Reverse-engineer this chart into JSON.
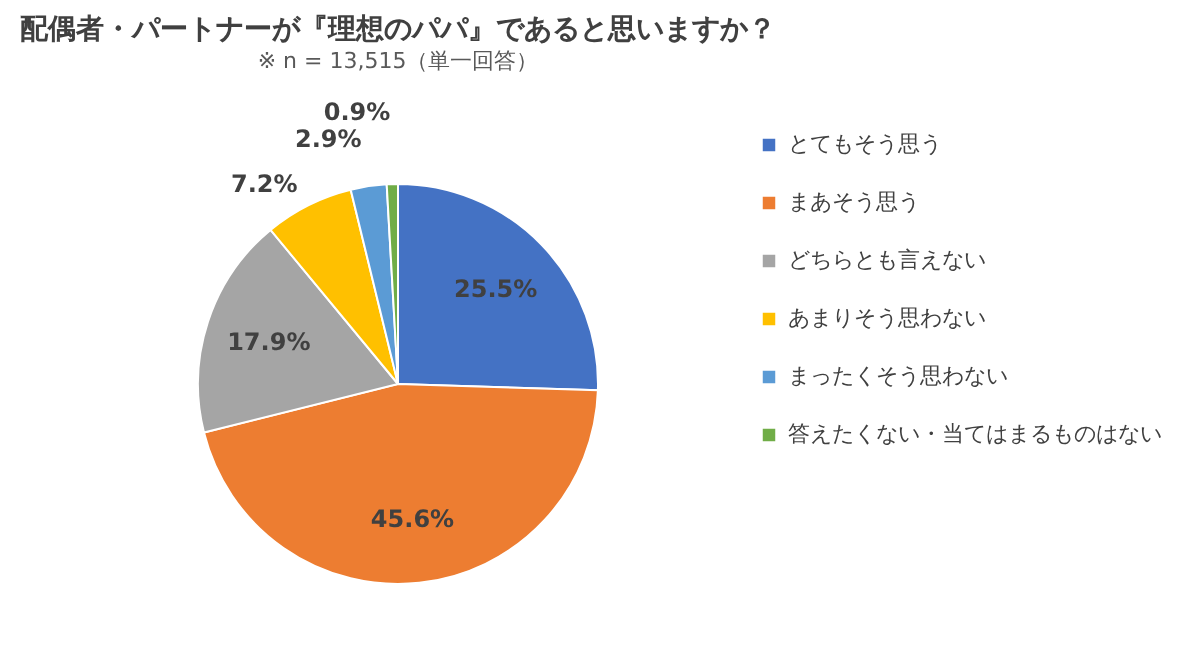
{
  "chart_data": {
    "type": "pie",
    "title": "配偶者・パートナーが『理想のパパ』であると思いますか？",
    "subtitle": "※ n = 13,515（単一回答）",
    "categories": [
      "とてもそう思う",
      "まあそう思う",
      "どちらとも言えない",
      "あまりそう思わない",
      "まったくそう思わない",
      "答えたくない・当てはまるものはない"
    ],
    "values": [
      25.5,
      45.6,
      17.9,
      7.2,
      2.9,
      0.9
    ],
    "colors": [
      "#4472c4",
      "#ed7d31",
      "#a5a5a5",
      "#ffc000",
      "#5b9bd5",
      "#70ad47"
    ],
    "value_labels": [
      "25.5%",
      "45.6%",
      "17.9%",
      "7.2%",
      "2.9%",
      "0.9%"
    ],
    "legend": "right"
  }
}
